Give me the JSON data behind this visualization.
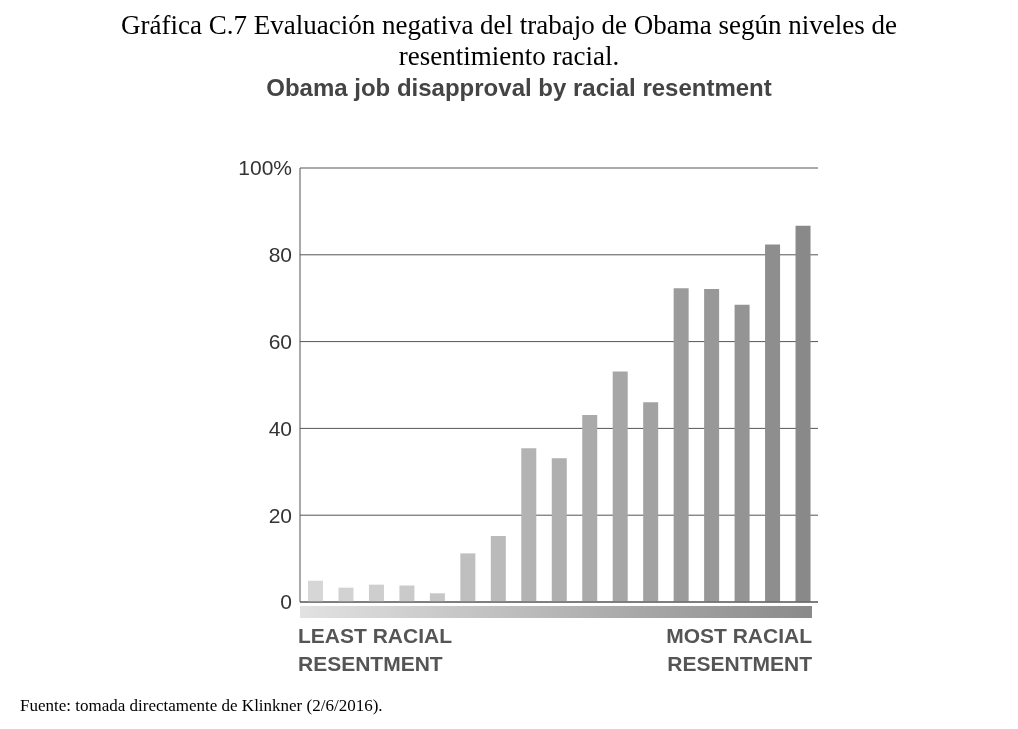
{
  "chart_data": {
    "type": "bar",
    "title": "Gráfica C.7 Evaluación negativa del trabajo de Obama según niveles de resentimiento racial.",
    "subtitle": "Obama job disapproval by racial resentment",
    "categories": [
      null,
      null,
      null,
      null,
      null,
      null,
      null,
      null,
      null,
      null,
      null,
      null,
      null,
      null,
      null,
      null,
      null
    ],
    "values": [
      4.9,
      3.3,
      4.0,
      3.8,
      2.0,
      11.2,
      15.2,
      35.4,
      33.1,
      43.1,
      53.1,
      46.0,
      72.3,
      72.1,
      68.5,
      82.4,
      86.7
    ],
    "colors": [
      "#d6d6d6",
      "#d2d2d2",
      "#cecece",
      "#cacaca",
      "#c6c6c6",
      "#bfbfbf",
      "#bababa",
      "#b3b3b3",
      "#afafaf",
      "#aaaaaa",
      "#a6a6a6",
      "#a2a2a2",
      "#9b9b9b",
      "#989898",
      "#949494",
      "#8e8e8e",
      "#898989"
    ],
    "ylim": [
      0,
      100
    ],
    "yticks": [
      0,
      20,
      40,
      60,
      {
        "value": 80,
        "label": "80"
      },
      {
        "value": 100,
        "label": "100%"
      }
    ],
    "grid": "y",
    "legend": false,
    "annotations": [
      "LEAST RACIAL RESENTMENT",
      "MOST RACIAL RESENTMENT",
      "Fuente: tomada directamente de Klinkner (2/6/2016)."
    ]
  }
}
